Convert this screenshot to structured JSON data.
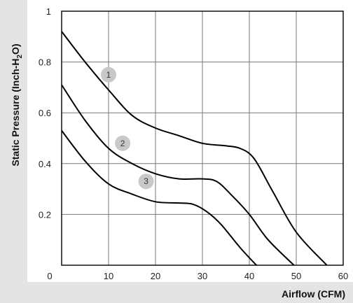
{
  "chart_data": {
    "type": "line",
    "xlabel": "Airflow (CFM)",
    "ylabel_main": "Static Pressure (Inch-H",
    "ylabel_sub": "2",
    "ylabel_end": "O)",
    "xlim": [
      0,
      60
    ],
    "ylim": [
      0,
      1
    ],
    "x_ticks": [
      0,
      10,
      20,
      30,
      40,
      50,
      60
    ],
    "x_tick_labels": [
      "0",
      "10",
      "20",
      "30",
      "40",
      "50",
      "60"
    ],
    "y_ticks": [
      0.2,
      0.4,
      0.6,
      0.8,
      1
    ],
    "y_tick_labels": [
      "0.2",
      "0.4",
      "0.6",
      "0.8",
      "1"
    ],
    "grid": true,
    "colors": {
      "line": "#000000",
      "grid": "#777777",
      "axis_band": "#e4e4e4",
      "marker": "#c8c8c8"
    },
    "series": [
      {
        "marker_label": "1",
        "points": [
          [
            0,
            0.92
          ],
          [
            5,
            0.8
          ],
          [
            10,
            0.69
          ],
          [
            15,
            0.59
          ],
          [
            20,
            0.54
          ],
          [
            25,
            0.51
          ],
          [
            30,
            0.48
          ],
          [
            35,
            0.47
          ],
          [
            38,
            0.46
          ],
          [
            41,
            0.42
          ],
          [
            45,
            0.29
          ],
          [
            50,
            0.13
          ],
          [
            56.5,
            0
          ]
        ],
        "marker_at": [
          10,
          0.75
        ]
      },
      {
        "marker_label": "2",
        "points": [
          [
            0,
            0.71
          ],
          [
            5,
            0.57
          ],
          [
            10,
            0.46
          ],
          [
            15,
            0.4
          ],
          [
            20,
            0.36
          ],
          [
            25,
            0.34
          ],
          [
            30,
            0.34
          ],
          [
            33,
            0.33
          ],
          [
            36,
            0.28
          ],
          [
            40,
            0.2
          ],
          [
            44,
            0.1
          ],
          [
            49.5,
            0
          ]
        ],
        "marker_at": [
          13,
          0.48
        ]
      },
      {
        "marker_label": "3",
        "points": [
          [
            0,
            0.53
          ],
          [
            5,
            0.41
          ],
          [
            10,
            0.32
          ],
          [
            15,
            0.28
          ],
          [
            20,
            0.25
          ],
          [
            25,
            0.245
          ],
          [
            28,
            0.24
          ],
          [
            31,
            0.21
          ],
          [
            34,
            0.16
          ],
          [
            38,
            0.07
          ],
          [
            41.5,
            0
          ]
        ],
        "marker_at": [
          18,
          0.33
        ]
      }
    ]
  }
}
